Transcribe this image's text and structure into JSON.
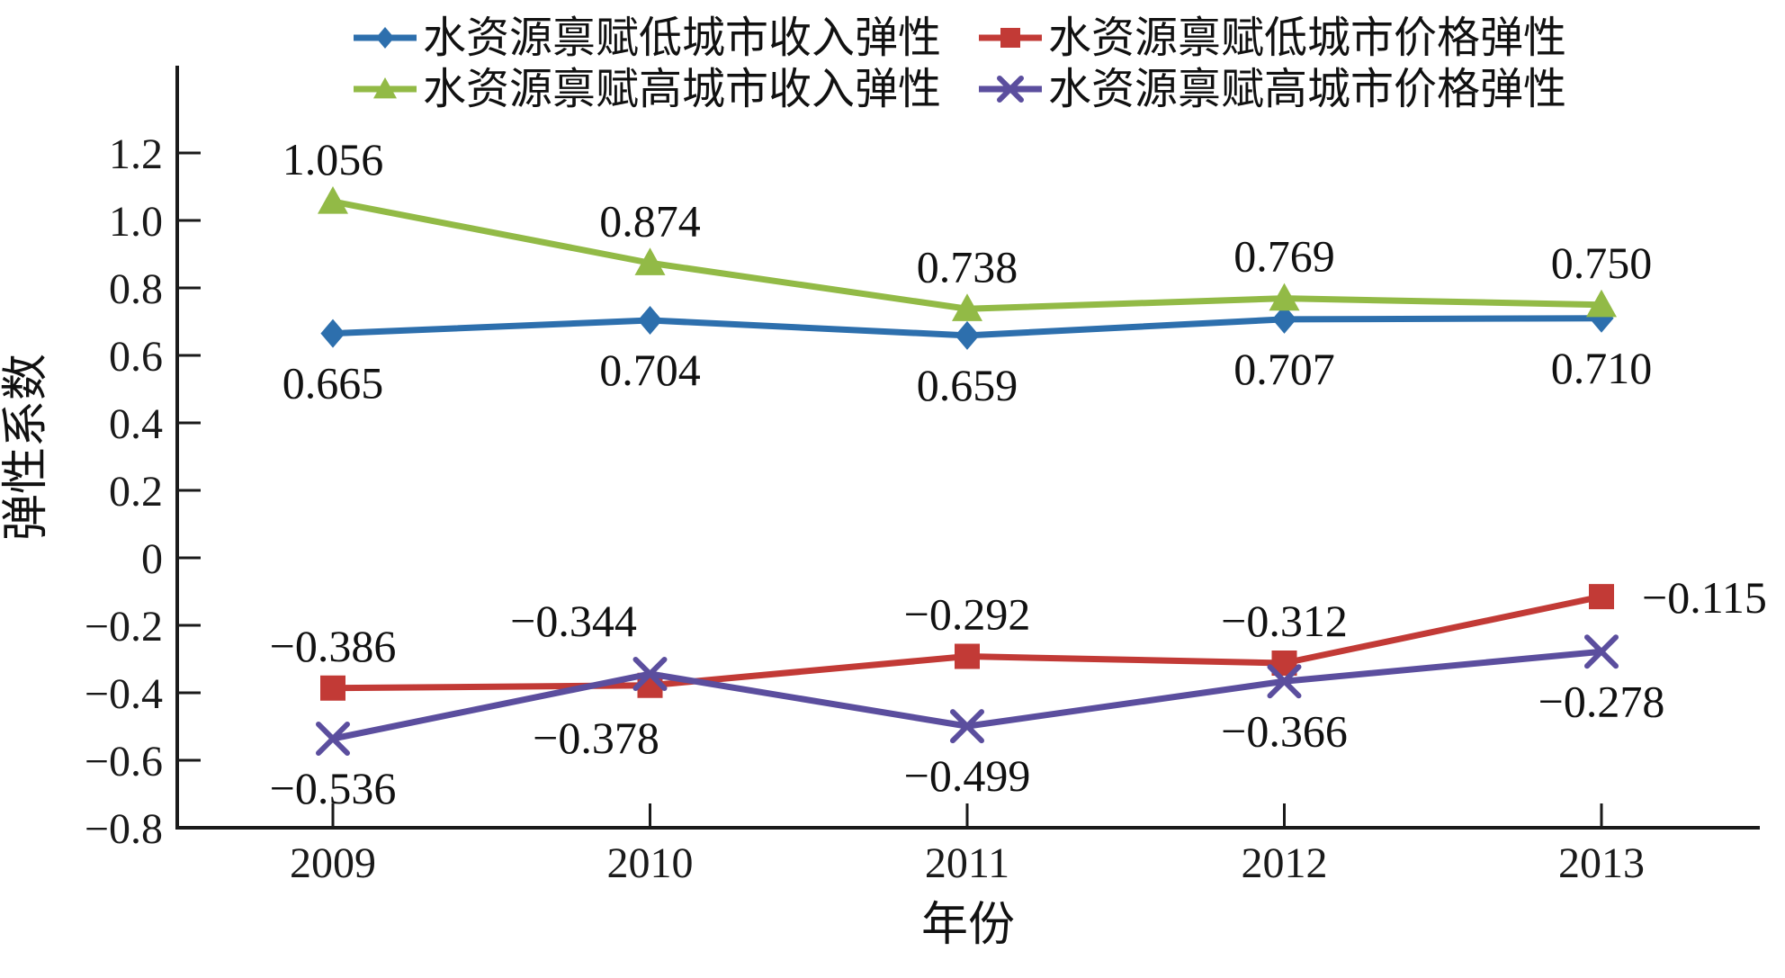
{
  "figure": {
    "background": "#ffffff",
    "text_color": "#111111",
    "axis_color": "#1a1a1a"
  },
  "chart_data": {
    "type": "line",
    "x": [
      "2009",
      "2010",
      "2011",
      "2012",
      "2013"
    ],
    "xlabel": "年份",
    "ylabel": "弹性系数",
    "ylim": [
      -0.8,
      1.3
    ],
    "grid": "off",
    "legend_position": "top-center, 2 rows x 2 columns",
    "y_ticks": [
      {
        "value": 1.2,
        "label": "1.2"
      },
      {
        "value": 1.0,
        "label": "1.0"
      },
      {
        "value": 0.8,
        "label": "0.8"
      },
      {
        "value": 0.6,
        "label": "0.6"
      },
      {
        "value": 0.4,
        "label": "0.4"
      },
      {
        "value": 0.2,
        "label": "0.2"
      },
      {
        "value": 0.0,
        "label": "0"
      },
      {
        "value": -0.2,
        "label": "−0.2"
      },
      {
        "value": -0.4,
        "label": "−0.4"
      },
      {
        "value": -0.6,
        "label": "−0.6"
      },
      {
        "value": -0.8,
        "label": "−0.8"
      }
    ],
    "series": [
      {
        "id": "income-low",
        "name": "水资源禀赋低城市收入弹性",
        "color": "#2d6fad",
        "marker": "diamond",
        "values": [
          0.665,
          0.704,
          0.659,
          0.707,
          0.71
        ],
        "label_pos": [
          "below",
          "below",
          "below",
          "below",
          "below"
        ]
      },
      {
        "id": "price-low",
        "name": "水资源禀赋低城市价格弹性",
        "color": "#c23a36",
        "marker": "square",
        "values": [
          -0.386,
          -0.378,
          -0.292,
          -0.312,
          -0.115
        ],
        "label_pos": [
          "above",
          "below-left",
          "above",
          "above",
          "right"
        ]
      },
      {
        "id": "income-high",
        "name": "水资源禀赋高城市收入弹性",
        "color": "#92ba46",
        "marker": "triangle",
        "values": [
          1.056,
          0.874,
          0.738,
          0.769,
          0.75
        ],
        "label_pos": [
          "above",
          "above",
          "above",
          "above",
          "above"
        ]
      },
      {
        "id": "price-high",
        "name": "水资源禀赋高城市价格弹性",
        "color": "#5b4e9e",
        "marker": "x",
        "values": [
          -0.536,
          -0.344,
          -0.499,
          -0.366,
          -0.278
        ],
        "label_pos": [
          "below",
          "above-left",
          "below",
          "below",
          "below"
        ]
      }
    ],
    "legend_rows": [
      [
        0,
        1
      ],
      [
        2,
        3
      ]
    ]
  }
}
